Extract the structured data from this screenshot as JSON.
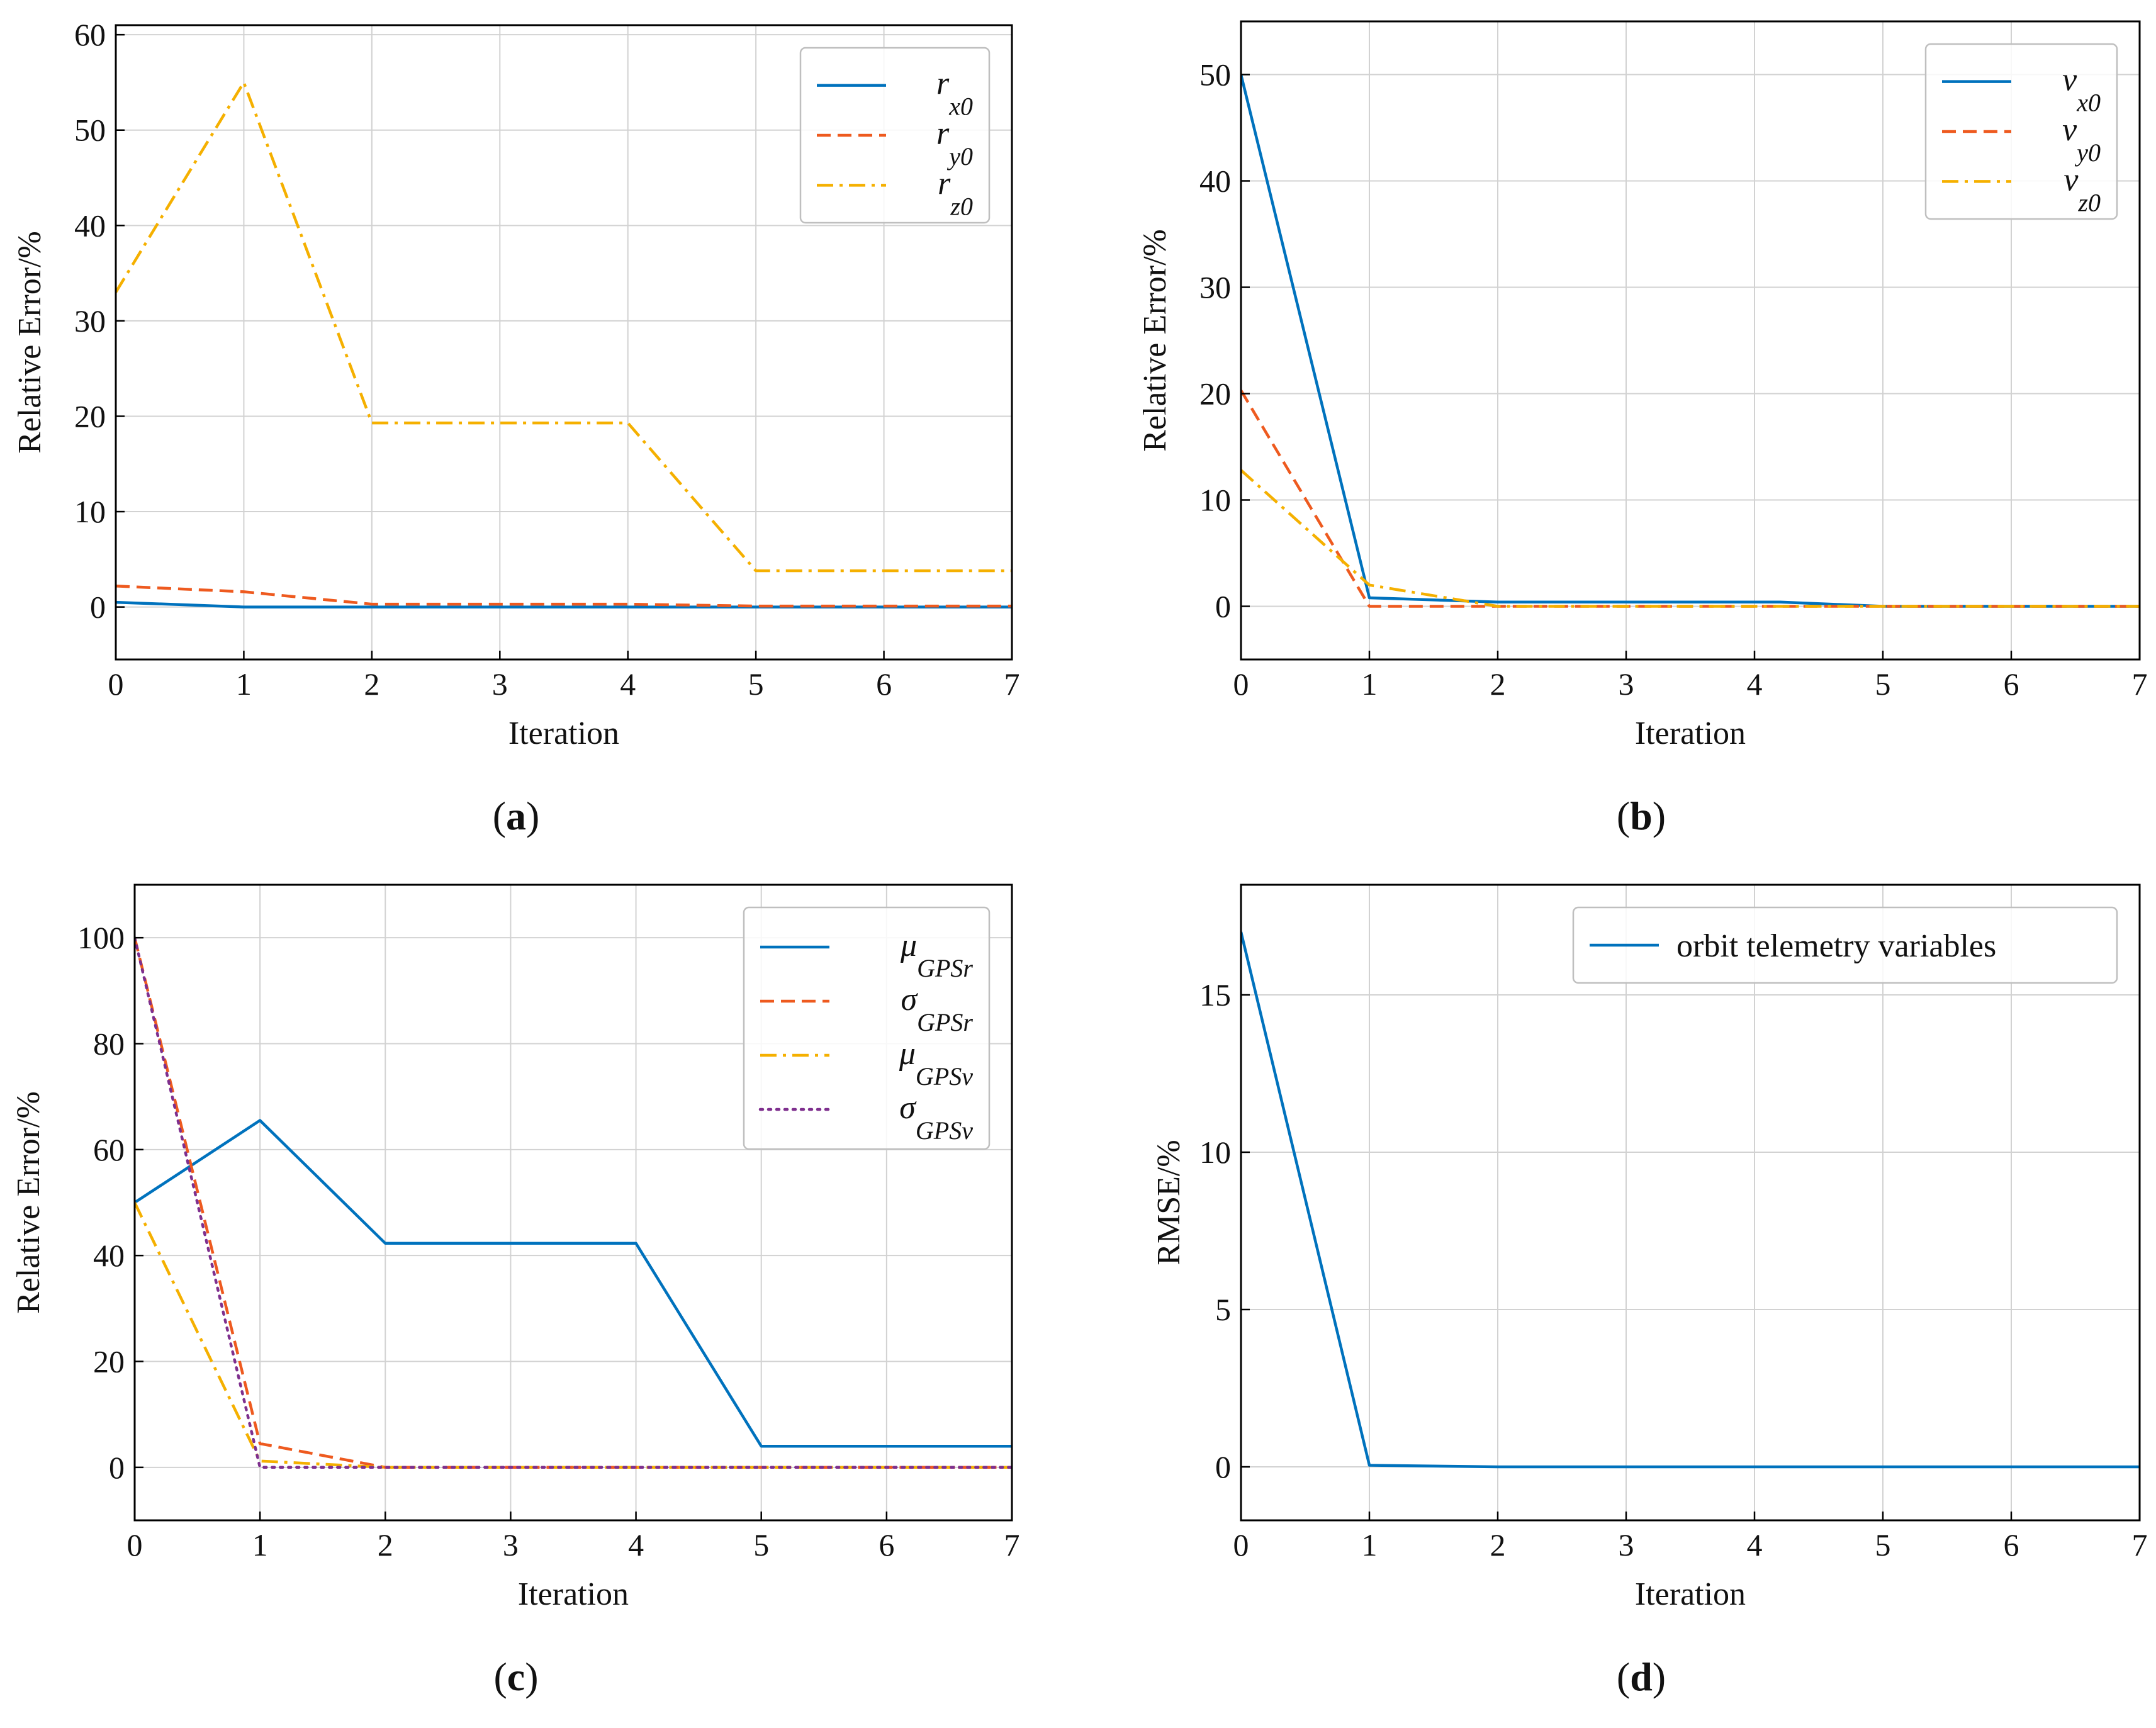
{
  "colors": {
    "blue": "#0072BD",
    "orange": "#EE5A1F",
    "yellow": "#F5B000",
    "purple": "#7E2F8E",
    "grid": "#d2d2d2"
  },
  "chart_data": [
    {
      "type": "line",
      "panel": "(a)",
      "caption_letter": "a",
      "xlabel": "Iteration",
      "ylabel": "Relative Error/%",
      "xlim": [
        0,
        7
      ],
      "ylim": [
        -5.5,
        61
      ],
      "xticks": [
        0,
        1,
        2,
        3,
        4,
        5,
        6,
        7
      ],
      "yticks": [
        0,
        10,
        20,
        30,
        40,
        50,
        60
      ],
      "legend_position": "top-right",
      "series": [
        {
          "name": "r_x0",
          "base": "r",
          "sub": "x0",
          "color_key": "blue",
          "dash": "solid",
          "x": [
            0,
            1,
            2,
            3,
            4,
            5,
            6,
            7
          ],
          "y": [
            0.5,
            0.0,
            0.0,
            0.0,
            0.0,
            0.0,
            0.0,
            0.0
          ]
        },
        {
          "name": "r_y0",
          "base": "r",
          "sub": "y0",
          "color_key": "orange",
          "dash": "dashed",
          "x": [
            0,
            1,
            2,
            3,
            4,
            5,
            6,
            7
          ],
          "y": [
            2.2,
            1.6,
            0.3,
            0.3,
            0.3,
            0.1,
            0.1,
            0.1
          ]
        },
        {
          "name": "r_z0",
          "base": "r",
          "sub": "z0",
          "color_key": "yellow",
          "dash": "dashdot",
          "x": [
            0,
            1,
            2,
            3,
            4,
            5,
            6,
            7
          ],
          "y": [
            33,
            55,
            19.3,
            19.3,
            19.3,
            3.8,
            3.8,
            3.8
          ]
        }
      ]
    },
    {
      "type": "line",
      "panel": "(b)",
      "caption_letter": "b",
      "xlabel": "Iteration",
      "ylabel": "Relative Error/%",
      "xlim": [
        0,
        7
      ],
      "ylim": [
        -5,
        55
      ],
      "xticks": [
        0,
        1,
        2,
        3,
        4,
        5,
        6,
        7
      ],
      "yticks": [
        0,
        10,
        20,
        30,
        40,
        50
      ],
      "legend_position": "top-right",
      "series": [
        {
          "name": "v_x0",
          "base": "v",
          "sub": "x0",
          "color_key": "blue",
          "dash": "solid",
          "x": [
            0,
            1,
            2,
            3,
            4,
            4.2,
            5,
            6,
            7
          ],
          "y": [
            50,
            0.8,
            0.4,
            0.4,
            0.4,
            0.4,
            0.0,
            0.0,
            0.0
          ]
        },
        {
          "name": "v_y0",
          "base": "v",
          "sub": "y0",
          "color_key": "orange",
          "dash": "dashed",
          "x": [
            0,
            1,
            2,
            3,
            4,
            5,
            6,
            7
          ],
          "y": [
            20.3,
            0.0,
            0.0,
            0.0,
            0.0,
            0.0,
            0.0,
            0.0
          ]
        },
        {
          "name": "v_z0",
          "base": "v",
          "sub": "z0",
          "color_key": "yellow",
          "dash": "dashdot",
          "x": [
            0,
            1,
            2,
            3,
            4,
            5,
            6,
            7
          ],
          "y": [
            12.8,
            2.0,
            0.0,
            0.0,
            0.0,
            0.0,
            0.0,
            0.0
          ]
        }
      ]
    },
    {
      "type": "line",
      "panel": "(c)",
      "caption_letter": "c",
      "xlabel": "Iteration",
      "ylabel": "Relative Error/%",
      "xlim": [
        0,
        7
      ],
      "ylim": [
        -10,
        110
      ],
      "xticks": [
        0,
        1,
        2,
        3,
        4,
        5,
        6,
        7
      ],
      "yticks": [
        0,
        20,
        40,
        60,
        80,
        100
      ],
      "legend_position": "top-right",
      "series": [
        {
          "name": "μ_GPSr",
          "base": "μ",
          "sub": "GPSr",
          "color_key": "blue",
          "dash": "solid",
          "x": [
            0,
            1,
            2,
            3,
            4,
            5,
            6,
            7
          ],
          "y": [
            50,
            65.5,
            42.3,
            42.3,
            42.3,
            4.0,
            4.0,
            4.0
          ]
        },
        {
          "name": "σ_GPSr",
          "base": "σ",
          "sub": "GPSr",
          "color_key": "orange",
          "dash": "dashed",
          "x": [
            0,
            1,
            2,
            3,
            4,
            5,
            6,
            7
          ],
          "y": [
            100,
            4.5,
            0.0,
            0.0,
            0.0,
            0.0,
            0.0,
            0.0
          ]
        },
        {
          "name": "μ_GPSv",
          "base": "μ",
          "sub": "GPSv",
          "color_key": "yellow",
          "dash": "dashdot",
          "x": [
            0,
            1,
            2,
            3,
            4,
            5,
            6,
            7
          ],
          "y": [
            50,
            1.2,
            0.0,
            0.0,
            0.0,
            0.0,
            0.0,
            0.0
          ]
        },
        {
          "name": "σ_GPSv",
          "base": "σ",
          "sub": "GPSv",
          "color_key": "purple",
          "dash": "dotted",
          "x": [
            0,
            1,
            2,
            3,
            4,
            5,
            6,
            7
          ],
          "y": [
            100,
            0.0,
            0.0,
            0.0,
            0.0,
            0.0,
            0.0,
            0.0
          ]
        }
      ]
    },
    {
      "type": "line",
      "panel": "(d)",
      "caption_letter": "d",
      "xlabel": "Iteration",
      "ylabel": "RMSE/%",
      "xlim": [
        0,
        7
      ],
      "ylim": [
        -1.7,
        18.5
      ],
      "xticks": [
        0,
        1,
        2,
        3,
        4,
        5,
        6,
        7
      ],
      "yticks": [
        0,
        5,
        10,
        15
      ],
      "legend_position": "top-right",
      "series": [
        {
          "name": "orbit telemetry variables",
          "base": "orbit telemetry variables",
          "sub": "",
          "color_key": "blue",
          "dash": "solid",
          "plain": true,
          "x": [
            0,
            1,
            2,
            3,
            4,
            5,
            6,
            7
          ],
          "y": [
            17,
            0.05,
            0.0,
            0.0,
            0.0,
            0.0,
            0.0,
            0.0
          ]
        }
      ]
    }
  ]
}
